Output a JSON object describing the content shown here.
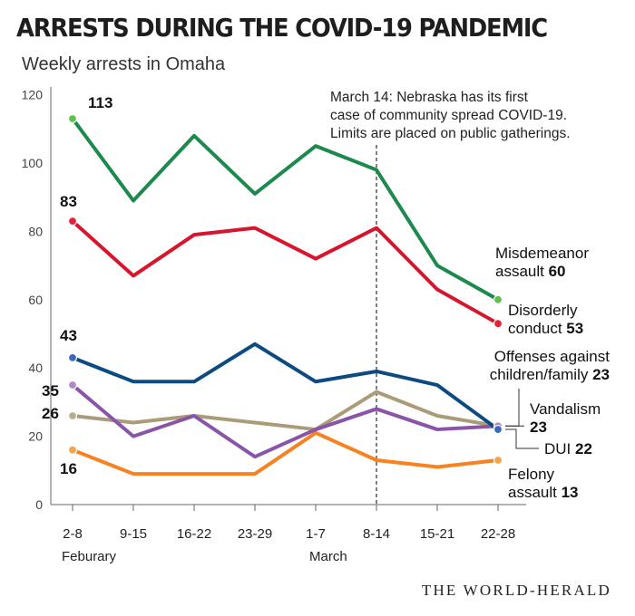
{
  "title": "ARRESTS DURING THE COVID-19 PANDEMIC",
  "subtitle": "Weekly arrests in Omaha",
  "credit": "THE WORLD-HERALD",
  "chart_data": {
    "type": "line",
    "categories": [
      "2-8",
      "9-15",
      "16-22",
      "23-29",
      "1-7",
      "8-14",
      "15-21",
      "22-28"
    ],
    "month_labels": [
      {
        "label": "Feburary",
        "category_index": 0
      },
      {
        "label": "March",
        "category_index": 4
      }
    ],
    "ylim": [
      0,
      120
    ],
    "yticks": [
      0,
      20,
      40,
      60,
      80,
      100,
      120
    ],
    "grid": false,
    "annotation": {
      "category_index": 5,
      "lines": [
        "March 14: Nebraska has its first",
        "case of community spread COVID-19.",
        "Limits are placed on public gatherings."
      ]
    },
    "series": [
      {
        "name": "Misdemeanor assault",
        "color": "#1b8a4c",
        "end_dot_color": "#5fc14a",
        "values": [
          113,
          89,
          108,
          91,
          105,
          98,
          70,
          60
        ],
        "start_label": "113",
        "end_label_lines": [
          "Misdemeanor",
          "assault"
        ],
        "end_value": "60"
      },
      {
        "name": "Disorderly conduct",
        "color": "#d7152d",
        "end_dot_color": "#e8203a",
        "values": [
          83,
          67,
          79,
          81,
          72,
          81,
          63,
          53
        ],
        "start_label": "83",
        "end_label_lines": [
          "Disorderly",
          "conduct"
        ],
        "end_value": "53"
      },
      {
        "name": "DUI",
        "color": "#0c4a82",
        "end_dot_color": "#3c68c0",
        "values": [
          43,
          36,
          36,
          47,
          36,
          39,
          35,
          22
        ],
        "start_label": "43",
        "end_label_lines": [
          "DUI"
        ],
        "end_value": "22"
      },
      {
        "name": "Vandalism",
        "color": "#8a55a8",
        "end_dot_color": "#b089c8",
        "values": [
          35,
          20,
          26,
          14,
          22,
          28,
          22,
          23
        ],
        "start_label": "35",
        "end_label_lines": [
          "Vandalism"
        ],
        "end_value": "23"
      },
      {
        "name": "Offenses against children/family",
        "color": "#aa9c78",
        "end_dot_color": "#b8ad90",
        "values": [
          26,
          24,
          26,
          24,
          22,
          33,
          26,
          23
        ],
        "start_label": "26",
        "end_label_lines": [
          "Offenses against",
          "children/family"
        ],
        "end_value": "23"
      },
      {
        "name": "Felony assault",
        "color": "#f7821f",
        "end_dot_color": "#f8a24a",
        "values": [
          16,
          9,
          9,
          9,
          21,
          13,
          11,
          13
        ],
        "start_label": "16",
        "end_label_lines": [
          "Felony",
          "assault"
        ],
        "end_value": "13"
      }
    ]
  }
}
